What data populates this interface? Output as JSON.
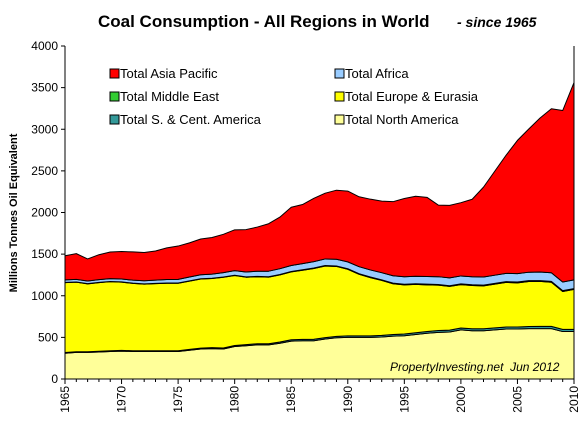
{
  "chart_data": {
    "type": "area",
    "title": "Coal Consumption - All Regions in World",
    "subtitle": "- since 1965",
    "ylabel": "Millions Tonnes Oil Equivalent",
    "xlabel": "",
    "ylim": [
      0,
      4000
    ],
    "yticks": [
      0,
      500,
      1000,
      1500,
      2000,
      2500,
      3000,
      3500,
      4000
    ],
    "xlim": [
      1965,
      2010
    ],
    "xticks": [
      1965,
      1970,
      1975,
      1980,
      1985,
      1990,
      1995,
      2000,
      2005,
      2010
    ],
    "x": [
      1965,
      1966,
      1967,
      1968,
      1969,
      1970,
      1971,
      1972,
      1973,
      1974,
      1975,
      1976,
      1977,
      1978,
      1979,
      1980,
      1981,
      1982,
      1983,
      1984,
      1985,
      1986,
      1987,
      1988,
      1989,
      1990,
      1991,
      1992,
      1993,
      1994,
      1995,
      1996,
      1997,
      1998,
      1999,
      2000,
      2001,
      2002,
      2003,
      2004,
      2005,
      2006,
      2007,
      2008,
      2009,
      2010
    ],
    "stack_order": [
      "North America",
      "S. & Cent. America",
      "Europe & Eurasia",
      "Middle East",
      "Africa",
      "Asia Pacific"
    ],
    "series": [
      {
        "key": "North America",
        "name": "Total North America",
        "color": "#ffff99",
        "values": [
          310,
          320,
          320,
          325,
          330,
          335,
          330,
          330,
          330,
          330,
          330,
          345,
          360,
          365,
          360,
          390,
          400,
          410,
          410,
          430,
          455,
          460,
          460,
          480,
          495,
          500,
          500,
          500,
          505,
          515,
          520,
          535,
          550,
          560,
          565,
          590,
          580,
          580,
          590,
          600,
          600,
          605,
          605,
          605,
          570,
          570
        ]
      },
      {
        "key": "S. & Cent. America",
        "name": "Total S. & Cent. America",
        "color": "#339999",
        "values": [
          8,
          8,
          8,
          8,
          9,
          9,
          9,
          9,
          10,
          10,
          10,
          11,
          11,
          12,
          12,
          13,
          13,
          14,
          14,
          15,
          16,
          16,
          17,
          17,
          17,
          18,
          18,
          18,
          19,
          19,
          20,
          21,
          21,
          22,
          22,
          23,
          23,
          23,
          24,
          25,
          25,
          26,
          27,
          27,
          26,
          26
        ]
      },
      {
        "key": "Europe & Eurasia",
        "name": "Total Europe & Eurasia",
        "color": "#ffff00",
        "values": [
          840,
          835,
          815,
          825,
          830,
          820,
          810,
          800,
          805,
          810,
          810,
          820,
          830,
          830,
          850,
          840,
          810,
          805,
          800,
          805,
          815,
          830,
          850,
          860,
          840,
          800,
          740,
          700,
          660,
          610,
          590,
          580,
          560,
          545,
          525,
          520,
          520,
          515,
          525,
          535,
          530,
          540,
          540,
          530,
          455,
          480
        ]
      },
      {
        "key": "Middle East",
        "name": "Total Middle East",
        "color": "#33cc33",
        "values": [
          2,
          2,
          2,
          2,
          2,
          2,
          2,
          3,
          3,
          3,
          3,
          3,
          3,
          3,
          4,
          4,
          4,
          4,
          5,
          5,
          5,
          6,
          6,
          6,
          6,
          7,
          7,
          7,
          7,
          8,
          8,
          8,
          8,
          8,
          8,
          9,
          9,
          9,
          9,
          9,
          10,
          10,
          10,
          10,
          10,
          10
        ]
      },
      {
        "key": "Africa",
        "name": "Total Africa",
        "color": "#99ccff",
        "values": [
          30,
          31,
          32,
          33,
          34,
          35,
          36,
          38,
          40,
          42,
          44,
          46,
          48,
          50,
          52,
          55,
          58,
          62,
          66,
          70,
          72,
          74,
          77,
          79,
          80,
          82,
          84,
          85,
          86,
          88,
          90,
          91,
          93,
          94,
          95,
          96,
          97,
          98,
          99,
          100,
          101,
          102,
          103,
          104,
          104,
          105
        ]
      },
      {
        "key": "Asia Pacific",
        "name": "Total Asia Pacific",
        "color": "#ff0000",
        "values": [
          290,
          310,
          265,
          300,
          320,
          330,
          340,
          340,
          350,
          380,
          400,
          410,
          430,
          440,
          460,
          490,
          510,
          530,
          570,
          620,
          700,
          710,
          760,
          790,
          830,
          850,
          840,
          850,
          860,
          890,
          940,
          960,
          950,
          860,
          870,
          880,
          930,
          1080,
          1250,
          1420,
          1600,
          1720,
          1850,
          1970,
          2060,
          2370
        ]
      }
    ],
    "legend": {
      "placement": "top",
      "columns": [
        [
          "Asia Pacific",
          "Middle East",
          "S. & Cent. America"
        ],
        [
          "Africa",
          "Europe & Eurasia",
          "North America"
        ]
      ]
    },
    "annotation": "PropertyInvesting.net  Jun 2012",
    "grid": false
  }
}
